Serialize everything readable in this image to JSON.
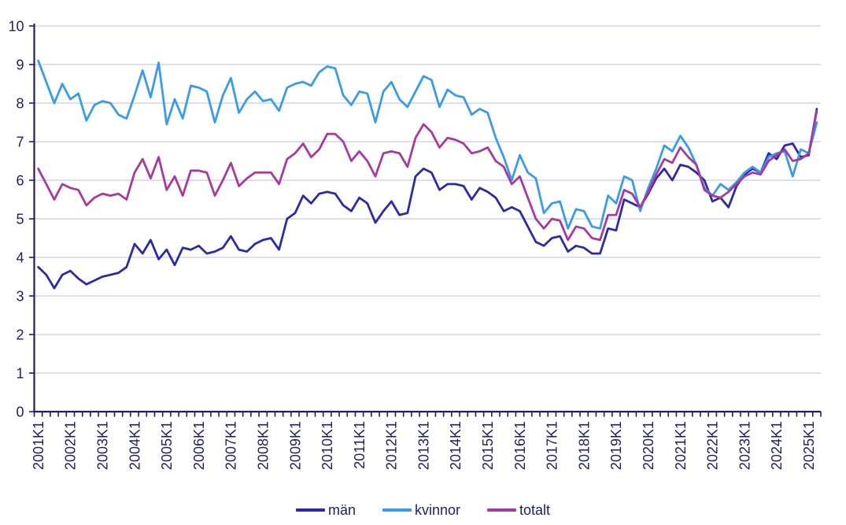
{
  "chart_data": {
    "type": "line",
    "title": "",
    "xlabel": "",
    "ylabel": "",
    "ylim": [
      0,
      10
    ],
    "yticks": [
      0,
      1,
      2,
      3,
      4,
      5,
      6,
      7,
      8,
      9,
      10
    ],
    "grid": true,
    "legend_position": "bottom",
    "x_tick_label_rotation": 90,
    "x": [
      "2001K1",
      "2001K2",
      "2001K3",
      "2001K4",
      "2002K1",
      "2002K2",
      "2002K3",
      "2002K4",
      "2003K1",
      "2003K2",
      "2003K3",
      "2003K4",
      "2004K1",
      "2004K2",
      "2004K3",
      "2004K4",
      "2005K1",
      "2005K2",
      "2005K3",
      "2005K4",
      "2006K1",
      "2006K2",
      "2006K3",
      "2006K4",
      "2007K1",
      "2007K2",
      "2007K3",
      "2007K4",
      "2008K1",
      "2008K2",
      "2008K3",
      "2008K4",
      "2009K1",
      "2009K2",
      "2009K3",
      "2009K4",
      "2010K1",
      "2010K2",
      "2010K3",
      "2010K4",
      "2011K1",
      "2011K2",
      "2011K3",
      "2011K4",
      "2012K1",
      "2012K2",
      "2012K3",
      "2012K4",
      "2013K1",
      "2013K2",
      "2013K3",
      "2013K4",
      "2014K1",
      "2014K2",
      "2014K3",
      "2014K4",
      "2015K1",
      "2015K2",
      "2015K3",
      "2015K4",
      "2016K1",
      "2016K2",
      "2016K3",
      "2016K4",
      "2017K1",
      "2017K2",
      "2017K3",
      "2017K4",
      "2018K1",
      "2018K2",
      "2018K3",
      "2018K4",
      "2019K1",
      "2019K2",
      "2019K3",
      "2019K4",
      "2020K1",
      "2020K2",
      "2020K3",
      "2020K4",
      "2021K1",
      "2021K2",
      "2021K3",
      "2021K4",
      "2022K1",
      "2022K2",
      "2022K3",
      "2022K4",
      "2023K1",
      "2023K2",
      "2023K3",
      "2023K4",
      "2024K1",
      "2024K2",
      "2024K3",
      "2024K4",
      "2025K1",
      "2025K2"
    ],
    "series": [
      {
        "name": "män",
        "color": "#2d2aa5",
        "values": [
          3.75,
          3.55,
          3.2,
          3.55,
          3.65,
          3.45,
          3.3,
          3.4,
          3.5,
          3.55,
          3.6,
          3.75,
          4.35,
          4.1,
          4.45,
          3.95,
          4.2,
          3.8,
          4.25,
          4.2,
          4.3,
          4.1,
          4.15,
          4.25,
          4.55,
          4.2,
          4.15,
          4.35,
          4.45,
          4.5,
          4.2,
          5.0,
          5.15,
          5.6,
          5.4,
          5.65,
          5.7,
          5.65,
          5.35,
          5.2,
          5.55,
          5.4,
          4.9,
          5.2,
          5.45,
          5.1,
          5.15,
          6.1,
          6.3,
          6.2,
          5.75,
          5.9,
          5.9,
          5.85,
          5.5,
          5.8,
          5.7,
          5.55,
          5.2,
          5.3,
          5.2,
          4.8,
          4.4,
          4.3,
          4.5,
          4.55,
          4.15,
          4.3,
          4.25,
          4.1,
          4.1,
          4.75,
          4.7,
          5.5,
          5.4,
          5.3,
          5.65,
          6.05,
          6.3,
          6.0,
          6.4,
          6.35,
          6.2,
          6.0,
          5.45,
          5.55,
          5.3,
          5.85,
          6.15,
          6.3,
          6.2,
          6.7,
          6.55,
          6.9,
          6.95,
          6.6,
          6.65,
          7.85
        ]
      },
      {
        "name": "kvinnor",
        "color": "#3a9be8",
        "values": [
          9.1,
          8.55,
          8.0,
          8.5,
          8.1,
          8.25,
          7.55,
          7.95,
          8.05,
          8.0,
          7.7,
          7.6,
          8.2,
          8.85,
          8.15,
          9.05,
          7.45,
          8.1,
          7.6,
          8.45,
          8.4,
          8.3,
          7.5,
          8.2,
          8.65,
          7.75,
          8.1,
          8.3,
          8.05,
          8.1,
          7.8,
          8.4,
          8.5,
          8.55,
          8.45,
          8.8,
          8.95,
          8.9,
          8.2,
          7.95,
          8.3,
          8.25,
          7.5,
          8.3,
          8.55,
          8.1,
          7.9,
          8.3,
          8.7,
          8.6,
          7.9,
          8.35,
          8.2,
          8.15,
          7.7,
          7.85,
          7.75,
          7.1,
          6.6,
          6.0,
          6.65,
          6.2,
          6.05,
          5.15,
          5.4,
          5.45,
          4.75,
          5.25,
          5.2,
          4.8,
          4.75,
          5.6,
          5.4,
          6.1,
          6.0,
          5.2,
          5.8,
          6.3,
          6.9,
          6.75,
          7.15,
          6.85,
          6.4,
          5.8,
          5.6,
          5.9,
          5.75,
          5.95,
          6.2,
          6.35,
          6.2,
          6.6,
          6.7,
          6.75,
          6.1,
          6.8,
          6.7,
          7.5
        ]
      },
      {
        "name": "totalt",
        "color": "#a53aa1",
        "values": [
          6.3,
          5.9,
          5.5,
          5.9,
          5.8,
          5.75,
          5.35,
          5.55,
          5.65,
          5.6,
          5.65,
          5.5,
          6.2,
          6.55,
          6.05,
          6.6,
          5.75,
          6.1,
          5.6,
          6.25,
          6.25,
          6.2,
          5.6,
          6.0,
          6.45,
          5.85,
          6.05,
          6.2,
          6.2,
          6.2,
          5.9,
          6.55,
          6.7,
          6.95,
          6.6,
          6.8,
          7.2,
          7.2,
          7.0,
          6.5,
          6.75,
          6.5,
          6.1,
          6.7,
          6.75,
          6.7,
          6.35,
          7.1,
          7.45,
          7.25,
          6.85,
          7.1,
          7.05,
          6.95,
          6.7,
          6.75,
          6.85,
          6.5,
          6.35,
          5.9,
          6.1,
          5.55,
          5.0,
          4.75,
          5.0,
          4.95,
          4.45,
          4.8,
          4.75,
          4.5,
          4.45,
          5.1,
          5.1,
          5.75,
          5.65,
          5.3,
          5.7,
          6.15,
          6.55,
          6.45,
          6.85,
          6.6,
          6.4,
          5.75,
          5.6,
          5.55,
          5.7,
          5.9,
          6.1,
          6.2,
          6.15,
          6.5,
          6.65,
          6.8,
          6.5,
          6.55,
          6.7,
          7.8
        ]
      }
    ]
  },
  "style": {
    "axis_color": "#1f1f5e",
    "grid_color": "#cbcbe6",
    "label_color": "#1f1f5e",
    "background": "#ffffff"
  },
  "legend": {
    "items": [
      {
        "label": "män"
      },
      {
        "label": "kvinnor"
      },
      {
        "label": "totalt"
      }
    ]
  }
}
